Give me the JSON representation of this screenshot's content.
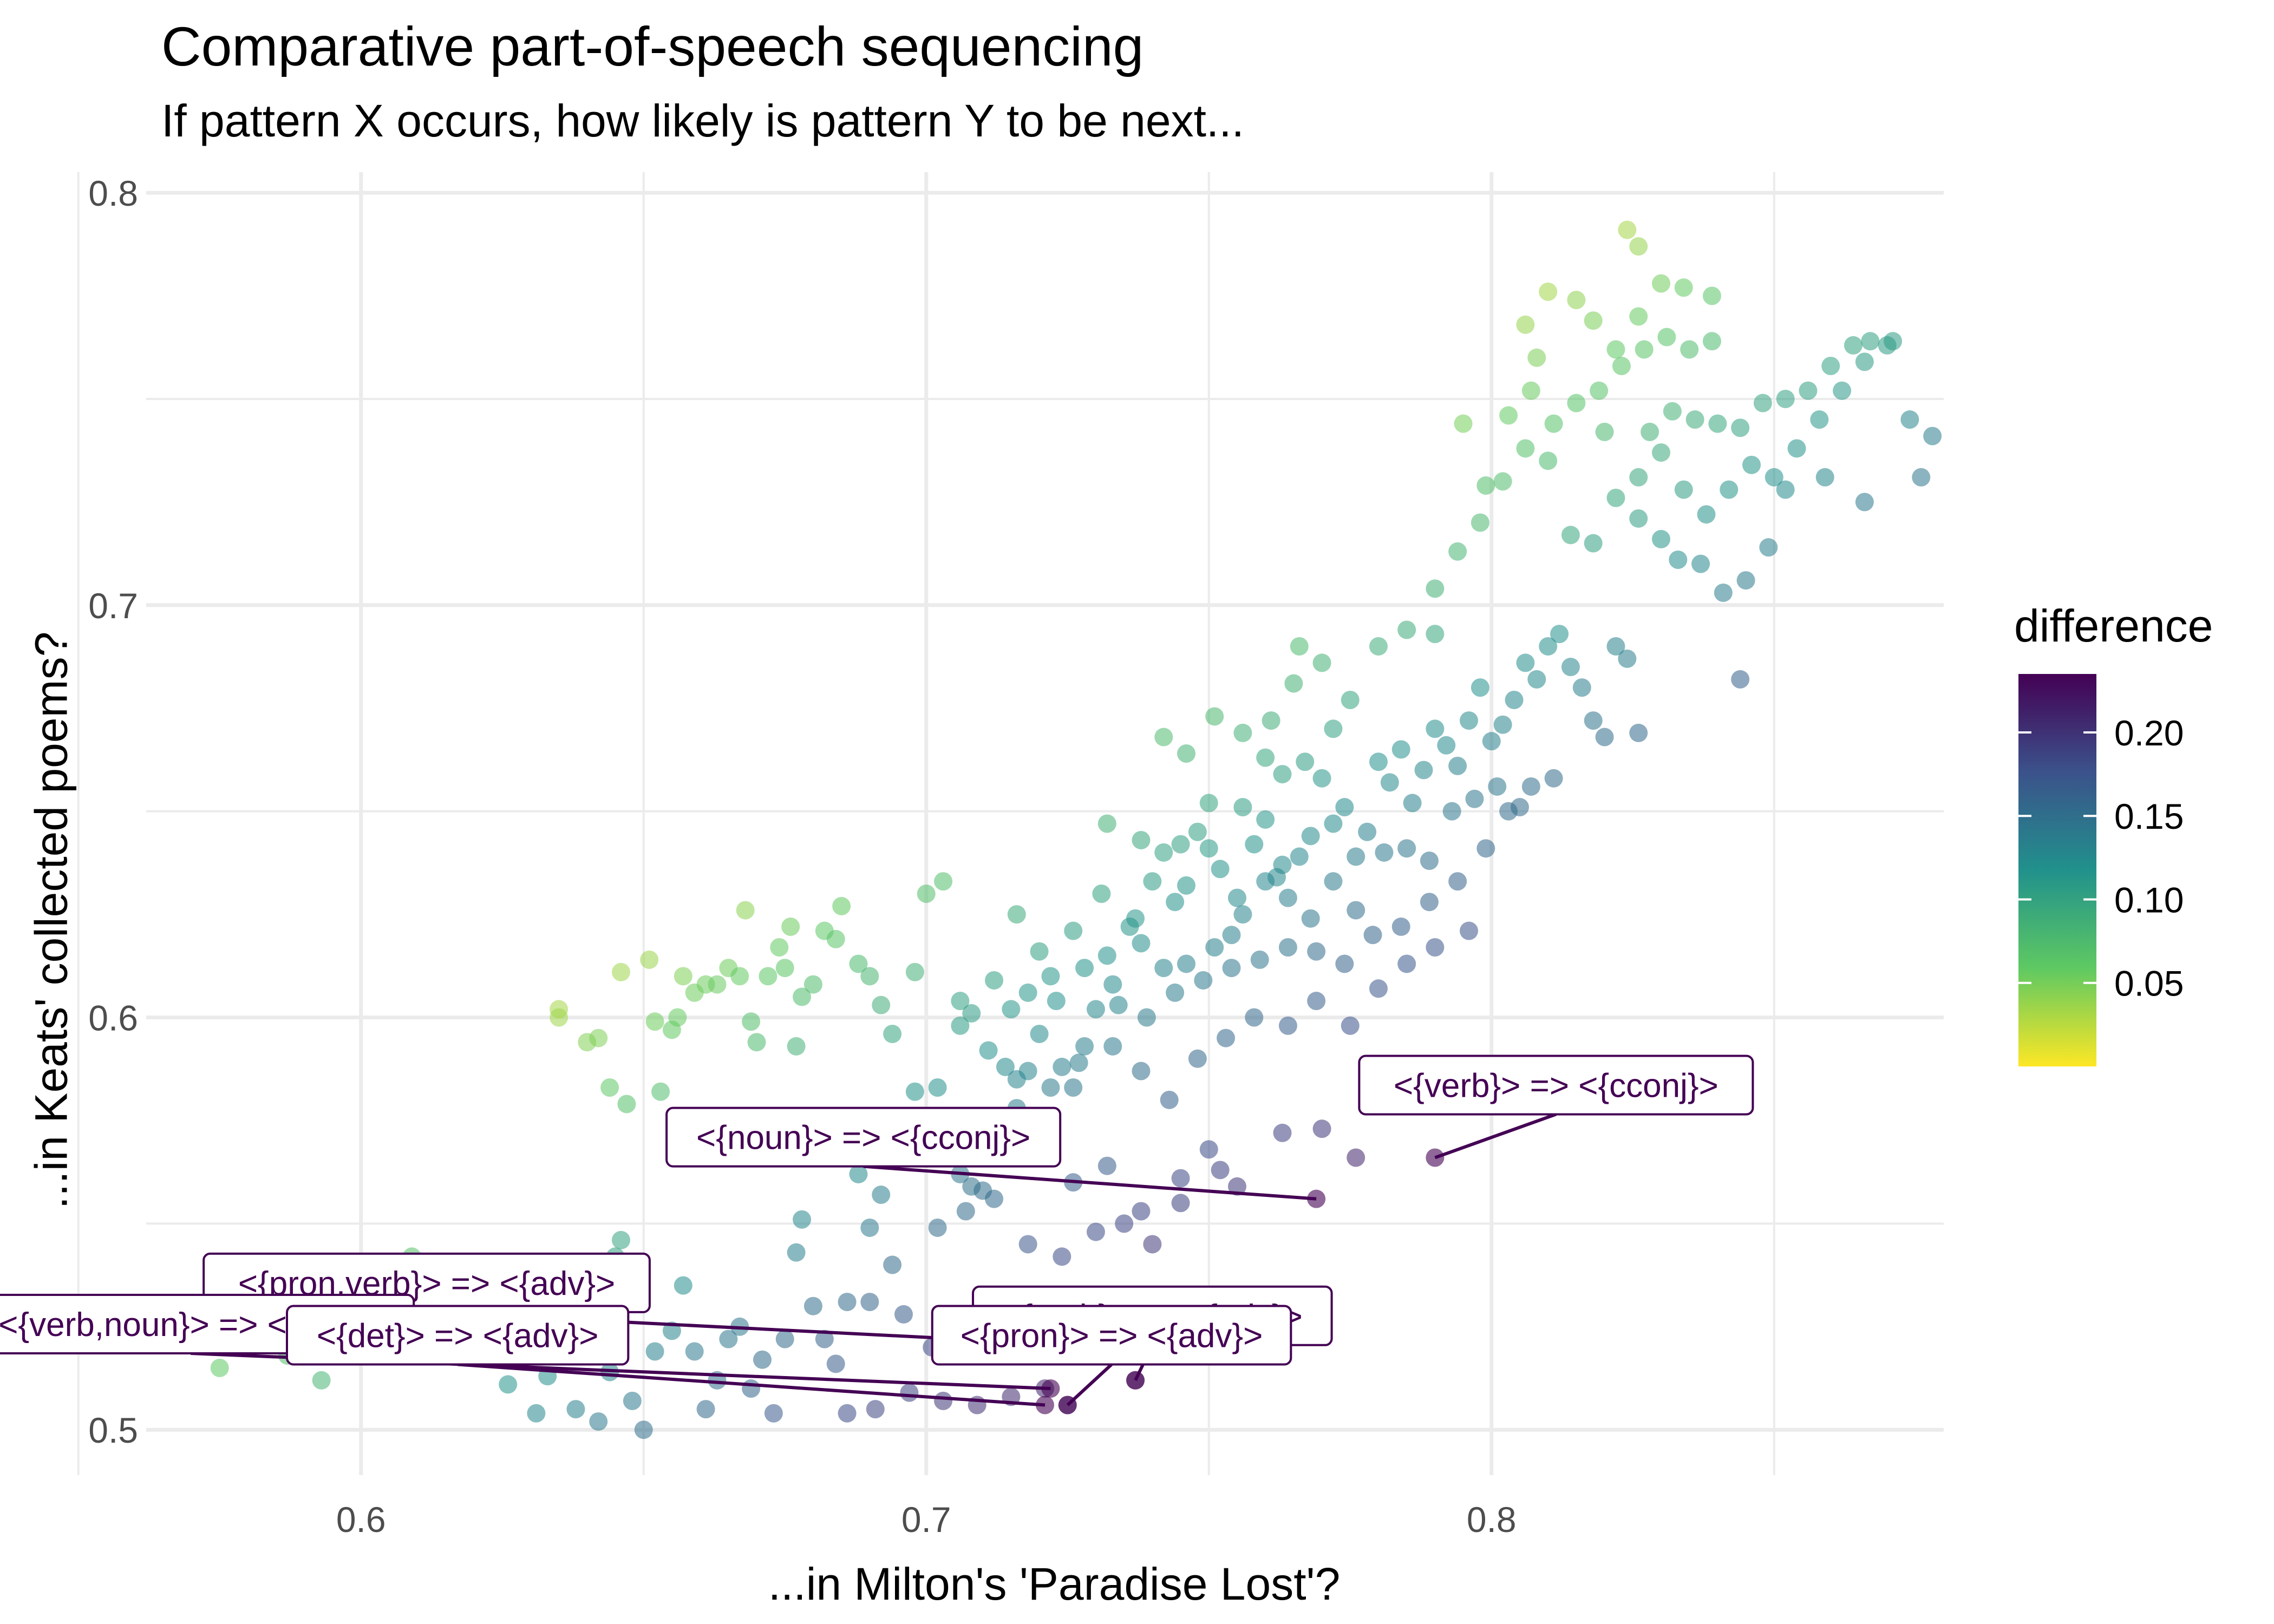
{
  "title": "Comparative part-of-speech sequencing",
  "subtitle": "If pattern X occurs, how likely is pattern Y to be next...",
  "colors": {
    "background": "#ffffff",
    "grid": "#ebebeb",
    "label_text": "#440154",
    "label_border": "#440154"
  },
  "chart_data": {
    "type": "scatter",
    "title": "Comparative part-of-speech sequencing",
    "subtitle": "If pattern X occurs, how likely is pattern Y to be next...",
    "xlabel": "...in Milton's 'Paradise Lost'?",
    "ylabel": "...in Keats' collected poems?",
    "xlim": [
      0.562,
      0.88
    ],
    "ylim": [
      0.489,
      0.805
    ],
    "x_ticks": [
      "0.6",
      "0.7",
      "0.8"
    ],
    "y_ticks": [
      "0.5",
      "0.6",
      "0.7",
      "0.8"
    ],
    "color_variable": "difference",
    "colormap": "viridis (reversed)",
    "color_range": [
      0.0,
      0.235
    ],
    "legend": {
      "title": "difference",
      "ticks": [
        "0.20",
        "0.15",
        "0.10",
        "0.05"
      ],
      "position": "right"
    },
    "points": [
      [
        0.575,
        0.515
      ],
      [
        0.581,
        0.532
      ],
      [
        0.583,
        0.527
      ],
      [
        0.585,
        0.538
      ],
      [
        0.587,
        0.518
      ],
      [
        0.588,
        0.528
      ],
      [
        0.593,
        0.512
      ],
      [
        0.596,
        0.528
      ],
      [
        0.601,
        0.522
      ],
      [
        0.603,
        0.52
      ],
      [
        0.606,
        0.539
      ],
      [
        0.607,
        0.534
      ],
      [
        0.609,
        0.542
      ],
      [
        0.611,
        0.531
      ],
      [
        0.613,
        0.524
      ],
      [
        0.635,
        0.602
      ],
      [
        0.635,
        0.6
      ],
      [
        0.64,
        0.594
      ],
      [
        0.642,
        0.595
      ],
      [
        0.644,
        0.583
      ],
      [
        0.646,
        0.611
      ],
      [
        0.647,
        0.579
      ],
      [
        0.651,
        0.614
      ],
      [
        0.652,
        0.599
      ],
      [
        0.653,
        0.582
      ],
      [
        0.655,
        0.597
      ],
      [
        0.656,
        0.6
      ],
      [
        0.657,
        0.61
      ],
      [
        0.659,
        0.606
      ],
      [
        0.661,
        0.608
      ],
      [
        0.663,
        0.608
      ],
      [
        0.665,
        0.612
      ],
      [
        0.667,
        0.61
      ],
      [
        0.668,
        0.626
      ],
      [
        0.669,
        0.599
      ],
      [
        0.67,
        0.594
      ],
      [
        0.672,
        0.61
      ],
      [
        0.674,
        0.617
      ],
      [
        0.675,
        0.612
      ],
      [
        0.676,
        0.622
      ],
      [
        0.677,
        0.593
      ],
      [
        0.678,
        0.605
      ],
      [
        0.68,
        0.608
      ],
      [
        0.682,
        0.621
      ],
      [
        0.684,
        0.619
      ],
      [
        0.685,
        0.627
      ],
      [
        0.688,
        0.613
      ],
      [
        0.69,
        0.61
      ],
      [
        0.692,
        0.603
      ],
      [
        0.694,
        0.596
      ],
      [
        0.698,
        0.611
      ],
      [
        0.7,
        0.63
      ],
      [
        0.703,
        0.633
      ],
      [
        0.706,
        0.604
      ],
      [
        0.708,
        0.601
      ],
      [
        0.712,
        0.609
      ],
      [
        0.715,
        0.602
      ],
      [
        0.622,
        0.535
      ],
      [
        0.624,
        0.522
      ],
      [
        0.626,
        0.511
      ],
      [
        0.628,
        0.53
      ],
      [
        0.629,
        0.525
      ],
      [
        0.631,
        0.504
      ],
      [
        0.633,
        0.513
      ],
      [
        0.636,
        0.519
      ],
      [
        0.638,
        0.505
      ],
      [
        0.64,
        0.53
      ],
      [
        0.642,
        0.502
      ],
      [
        0.644,
        0.514
      ],
      [
        0.645,
        0.542
      ],
      [
        0.646,
        0.546
      ],
      [
        0.648,
        0.507
      ],
      [
        0.65,
        0.5
      ],
      [
        0.652,
        0.519
      ],
      [
        0.655,
        0.524
      ],
      [
        0.657,
        0.535
      ],
      [
        0.659,
        0.519
      ],
      [
        0.661,
        0.505
      ],
      [
        0.663,
        0.512
      ],
      [
        0.665,
        0.522
      ],
      [
        0.667,
        0.525
      ],
      [
        0.669,
        0.51
      ],
      [
        0.671,
        0.517
      ],
      [
        0.673,
        0.504
      ],
      [
        0.675,
        0.522
      ],
      [
        0.677,
        0.543
      ],
      [
        0.678,
        0.551
      ],
      [
        0.68,
        0.53
      ],
      [
        0.682,
        0.522
      ],
      [
        0.684,
        0.516
      ],
      [
        0.686,
        0.531
      ],
      [
        0.688,
        0.562
      ],
      [
        0.69,
        0.549
      ],
      [
        0.692,
        0.557
      ],
      [
        0.694,
        0.54
      ],
      [
        0.696,
        0.566
      ],
      [
        0.698,
        0.582
      ],
      [
        0.7,
        0.571
      ],
      [
        0.702,
        0.583
      ],
      [
        0.704,
        0.575
      ],
      [
        0.706,
        0.562
      ],
      [
        0.708,
        0.559
      ],
      [
        0.71,
        0.558
      ],
      [
        0.712,
        0.573
      ],
      [
        0.714,
        0.588
      ],
      [
        0.716,
        0.578
      ],
      [
        0.718,
        0.587
      ],
      [
        0.72,
        0.596
      ],
      [
        0.722,
        0.61
      ],
      [
        0.724,
        0.588
      ],
      [
        0.726,
        0.583
      ],
      [
        0.728,
        0.593
      ],
      [
        0.73,
        0.602
      ],
      [
        0.732,
        0.615
      ],
      [
        0.734,
        0.603
      ],
      [
        0.736,
        0.622
      ],
      [
        0.738,
        0.618
      ],
      [
        0.74,
        0.633
      ],
      [
        0.742,
        0.64
      ],
      [
        0.744,
        0.628
      ],
      [
        0.746,
        0.632
      ],
      [
        0.748,
        0.645
      ],
      [
        0.75,
        0.641
      ],
      [
        0.752,
        0.636
      ],
      [
        0.754,
        0.62
      ],
      [
        0.756,
        0.625
      ],
      [
        0.758,
        0.642
      ],
      [
        0.76,
        0.648
      ],
      [
        0.762,
        0.634
      ],
      [
        0.764,
        0.629
      ],
      [
        0.766,
        0.639
      ],
      [
        0.768,
        0.644
      ],
      [
        0.77,
        0.658
      ],
      [
        0.772,
        0.647
      ],
      [
        0.774,
        0.651
      ],
      [
        0.776,
        0.639
      ],
      [
        0.778,
        0.645
      ],
      [
        0.78,
        0.662
      ],
      [
        0.782,
        0.657
      ],
      [
        0.784,
        0.665
      ],
      [
        0.786,
        0.652
      ],
      [
        0.788,
        0.66
      ],
      [
        0.79,
        0.67
      ],
      [
        0.792,
        0.666
      ],
      [
        0.794,
        0.661
      ],
      [
        0.796,
        0.672
      ],
      [
        0.798,
        0.68
      ],
      [
        0.8,
        0.667
      ],
      [
        0.802,
        0.671
      ],
      [
        0.804,
        0.677
      ],
      [
        0.806,
        0.686
      ],
      [
        0.808,
        0.682
      ],
      [
        0.81,
        0.69
      ],
      [
        0.812,
        0.693
      ],
      [
        0.814,
        0.685
      ],
      [
        0.816,
        0.68
      ],
      [
        0.818,
        0.672
      ],
      [
        0.82,
        0.668
      ],
      [
        0.822,
        0.69
      ],
      [
        0.824,
        0.687
      ],
      [
        0.826,
        0.669
      ],
      [
        0.716,
        0.625
      ],
      [
        0.72,
        0.616
      ],
      [
        0.726,
        0.621
      ],
      [
        0.731,
        0.63
      ],
      [
        0.737,
        0.624
      ],
      [
        0.742,
        0.612
      ],
      [
        0.746,
        0.613
      ],
      [
        0.751,
        0.617
      ],
      [
        0.755,
        0.629
      ],
      [
        0.76,
        0.633
      ],
      [
        0.763,
        0.637
      ],
      [
        0.768,
        0.624
      ],
      [
        0.772,
        0.633
      ],
      [
        0.776,
        0.626
      ],
      [
        0.781,
        0.64
      ],
      [
        0.785,
        0.641
      ],
      [
        0.789,
        0.638
      ],
      [
        0.793,
        0.65
      ],
      [
        0.797,
        0.653
      ],
      [
        0.801,
        0.656
      ],
      [
        0.805,
        0.651
      ],
      [
        0.718,
        0.606
      ],
      [
        0.723,
        0.604
      ],
      [
        0.728,
        0.612
      ],
      [
        0.733,
        0.608
      ],
      [
        0.739,
        0.6
      ],
      [
        0.744,
        0.606
      ],
      [
        0.749,
        0.609
      ],
      [
        0.754,
        0.612
      ],
      [
        0.759,
        0.614
      ],
      [
        0.764,
        0.617
      ],
      [
        0.769,
        0.616
      ],
      [
        0.774,
        0.613
      ],
      [
        0.779,
        0.62
      ],
      [
        0.784,
        0.622
      ],
      [
        0.789,
        0.628
      ],
      [
        0.794,
        0.633
      ],
      [
        0.799,
        0.641
      ],
      [
        0.803,
        0.65
      ],
      [
        0.807,
        0.656
      ],
      [
        0.811,
        0.658
      ],
      [
        0.706,
        0.598
      ],
      [
        0.711,
        0.592
      ],
      [
        0.716,
        0.585
      ],
      [
        0.722,
        0.583
      ],
      [
        0.727,
        0.589
      ],
      [
        0.733,
        0.593
      ],
      [
        0.738,
        0.587
      ],
      [
        0.743,
        0.58
      ],
      [
        0.748,
        0.59
      ],
      [
        0.753,
        0.595
      ],
      [
        0.758,
        0.6
      ],
      [
        0.764,
        0.598
      ],
      [
        0.769,
        0.604
      ],
      [
        0.775,
        0.598
      ],
      [
        0.78,
        0.607
      ],
      [
        0.785,
        0.613
      ],
      [
        0.79,
        0.617
      ],
      [
        0.796,
        0.621
      ],
      [
        0.742,
        0.668
      ],
      [
        0.746,
        0.664
      ],
      [
        0.751,
        0.673
      ],
      [
        0.756,
        0.669
      ],
      [
        0.761,
        0.672
      ],
      [
        0.765,
        0.681
      ],
      [
        0.77,
        0.686
      ],
      [
        0.775,
        0.677
      ],
      [
        0.78,
        0.69
      ],
      [
        0.785,
        0.694
      ],
      [
        0.79,
        0.693
      ],
      [
        0.766,
        0.69
      ],
      [
        0.772,
        0.67
      ],
      [
        0.76,
        0.663
      ],
      [
        0.732,
        0.647
      ],
      [
        0.738,
        0.643
      ],
      [
        0.745,
        0.642
      ],
      [
        0.75,
        0.652
      ],
      [
        0.756,
        0.651
      ],
      [
        0.763,
        0.659
      ],
      [
        0.767,
        0.662
      ],
      [
        0.708,
        0.571
      ],
      [
        0.715,
        0.566
      ],
      [
        0.72,
        0.573
      ],
      [
        0.726,
        0.56
      ],
      [
        0.732,
        0.564
      ],
      [
        0.738,
        0.553
      ],
      [
        0.745,
        0.561
      ],
      [
        0.75,
        0.568
      ],
      [
        0.755,
        0.559
      ],
      [
        0.763,
        0.572
      ],
      [
        0.77,
        0.573
      ],
      [
        0.776,
        0.566
      ],
      [
        0.702,
        0.549
      ],
      [
        0.707,
        0.553
      ],
      [
        0.712,
        0.556
      ],
      [
        0.718,
        0.545
      ],
      [
        0.724,
        0.542
      ],
      [
        0.73,
        0.548
      ],
      [
        0.735,
        0.55
      ],
      [
        0.74,
        0.545
      ],
      [
        0.745,
        0.555
      ],
      [
        0.752,
        0.563
      ],
      [
        0.69,
        0.531
      ],
      [
        0.696,
        0.528
      ],
      [
        0.701,
        0.52
      ],
      [
        0.707,
        0.526
      ],
      [
        0.713,
        0.519
      ],
      [
        0.719,
        0.523
      ],
      [
        0.725,
        0.52
      ],
      [
        0.686,
        0.504
      ],
      [
        0.691,
        0.505
      ],
      [
        0.697,
        0.509
      ],
      [
        0.703,
        0.507
      ],
      [
        0.709,
        0.506
      ],
      [
        0.715,
        0.508
      ],
      [
        0.721,
        0.51
      ],
      [
        0.725,
        0.506
      ],
      [
        0.735,
        0.52
      ],
      [
        0.737,
        0.512
      ],
      [
        0.79,
        0.704
      ],
      [
        0.794,
        0.713
      ],
      [
        0.798,
        0.72
      ],
      [
        0.802,
        0.73
      ],
      [
        0.806,
        0.738
      ],
      [
        0.81,
        0.735
      ],
      [
        0.814,
        0.717
      ],
      [
        0.818,
        0.715
      ],
      [
        0.822,
        0.726
      ],
      [
        0.826,
        0.731
      ],
      [
        0.83,
        0.737
      ],
      [
        0.834,
        0.728
      ],
      [
        0.838,
        0.722
      ],
      [
        0.842,
        0.728
      ],
      [
        0.846,
        0.734
      ],
      [
        0.85,
        0.731
      ],
      [
        0.854,
        0.738
      ],
      [
        0.858,
        0.745
      ],
      [
        0.862,
        0.752
      ],
      [
        0.866,
        0.759
      ],
      [
        0.87,
        0.763
      ],
      [
        0.874,
        0.745
      ],
      [
        0.878,
        0.741
      ],
      [
        0.876,
        0.731
      ],
      [
        0.866,
        0.725
      ],
      [
        0.859,
        0.731
      ],
      [
        0.852,
        0.728
      ],
      [
        0.826,
        0.721
      ],
      [
        0.83,
        0.716
      ],
      [
        0.833,
        0.711
      ],
      [
        0.837,
        0.71
      ],
      [
        0.841,
        0.703
      ],
      [
        0.845,
        0.706
      ],
      [
        0.849,
        0.714
      ],
      [
        0.828,
        0.742
      ],
      [
        0.832,
        0.747
      ],
      [
        0.836,
        0.745
      ],
      [
        0.84,
        0.744
      ],
      [
        0.844,
        0.743
      ],
      [
        0.848,
        0.749
      ],
      [
        0.852,
        0.75
      ],
      [
        0.856,
        0.752
      ],
      [
        0.86,
        0.758
      ],
      [
        0.864,
        0.763
      ],
      [
        0.867,
        0.764
      ],
      [
        0.871,
        0.764
      ],
      [
        0.844,
        0.682
      ],
      [
        0.803,
        0.746
      ],
      [
        0.807,
        0.752
      ],
      [
        0.811,
        0.744
      ],
      [
        0.815,
        0.749
      ],
      [
        0.819,
        0.752
      ],
      [
        0.823,
        0.758
      ],
      [
        0.827,
        0.762
      ],
      [
        0.831,
        0.765
      ],
      [
        0.835,
        0.762
      ],
      [
        0.839,
        0.764
      ],
      [
        0.799,
        0.729
      ],
      [
        0.795,
        0.744
      ],
      [
        0.808,
        0.76
      ],
      [
        0.806,
        0.768
      ],
      [
        0.81,
        0.776
      ],
      [
        0.815,
        0.774
      ],
      [
        0.818,
        0.769
      ],
      [
        0.822,
        0.762
      ],
      [
        0.826,
        0.77
      ],
      [
        0.83,
        0.778
      ],
      [
        0.834,
        0.777
      ],
      [
        0.839,
        0.775
      ],
      [
        0.824,
        0.791
      ],
      [
        0.826,
        0.787
      ],
      [
        0.82,
        0.742
      ]
    ],
    "annotations": [
      {
        "text": "<{verb}> => <{cconj}>",
        "x": 0.79,
        "y": 0.566
      },
      {
        "text": "<{noun}> => <{cconj}>",
        "x": 0.769,
        "y": 0.556
      },
      {
        "text": "<{pron,verb}> => <{adv}>",
        "x": 0.735,
        "y": 0.52
      },
      {
        "text": "<{verb}> => <{adv}>",
        "x": 0.737,
        "y": 0.512
      },
      {
        "text": "<{verb,noun}> => <{adv}>",
        "x": 0.722,
        "y": 0.51
      },
      {
        "text": "<{det}> => <{adv}>",
        "x": 0.721,
        "y": 0.506
      },
      {
        "text": "<{pron}> => <{adv}>",
        "x": 0.725,
        "y": 0.506
      }
    ]
  }
}
